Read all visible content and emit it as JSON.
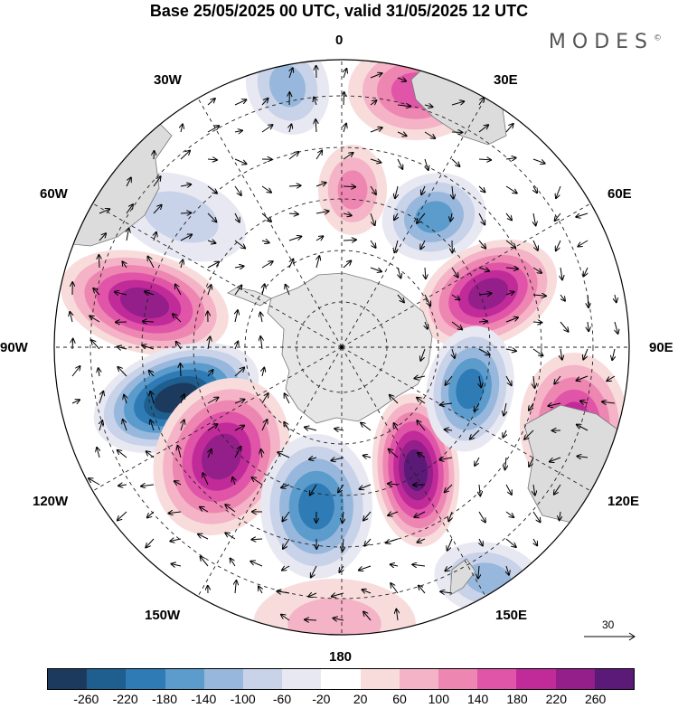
{
  "title": "Base 25/05/2025 00 UTC, valid 31/05/2025 12 UTC",
  "brand": "MODES",
  "brand_mark": "©",
  "longitude_labels": {
    "l0": "0",
    "l30e": "30E",
    "l60e": "60E",
    "l90e": "90E",
    "l120e": "120E",
    "l150e": "150E",
    "l180": "180",
    "l150w": "150W",
    "l120w": "120W",
    "l90w": "90W",
    "l60w": "60W",
    "l30w": "30W"
  },
  "reference_vector": {
    "label": "30"
  },
  "colorbar": {
    "colors": [
      "#1c3a5e",
      "#1f5f8f",
      "#2e7bb5",
      "#5b9ccc",
      "#97b8dc",
      "#c8d2e8",
      "#e8e8f2",
      "#ffffff",
      "#f8dcdc",
      "#f4b3c6",
      "#ee86b2",
      "#e055a8",
      "#c12b99",
      "#941f8a",
      "#5c1a78"
    ],
    "ticks": [
      "-260",
      "-220",
      "-180",
      "-140",
      "-100",
      "-60",
      "-20",
      "20",
      "60",
      "100",
      "140",
      "180",
      "220",
      "260"
    ]
  },
  "anomalies": [
    {
      "name": "pos-anomaly-0deg",
      "value": 140
    },
    {
      "name": "pos-anomaly-5e",
      "value": 100
    },
    {
      "name": "neg-anomaly-35w",
      "value": -100
    },
    {
      "name": "neg-anomaly-60w",
      "value": -60
    },
    {
      "name": "neg-anomaly-30e",
      "value": -140
    },
    {
      "name": "pos-anomaly-75e",
      "value": 220
    },
    {
      "name": "pos-anomaly-80w",
      "value": 240
    },
    {
      "name": "neg-anomaly-110w",
      "value": -260
    },
    {
      "name": "pos-anomaly-140w",
      "value": 220
    },
    {
      "name": "neg-anomaly-170w",
      "value": -180
    },
    {
      "name": "pos-anomaly-150e",
      "value": 260
    },
    {
      "name": "neg-anomaly-110e",
      "value": -180
    },
    {
      "name": "pos-anomaly-115e",
      "value": 180
    },
    {
      "name": "neg-anomaly-150e",
      "value": -100
    },
    {
      "name": "pos-anomaly-180",
      "value": 60
    }
  ]
}
